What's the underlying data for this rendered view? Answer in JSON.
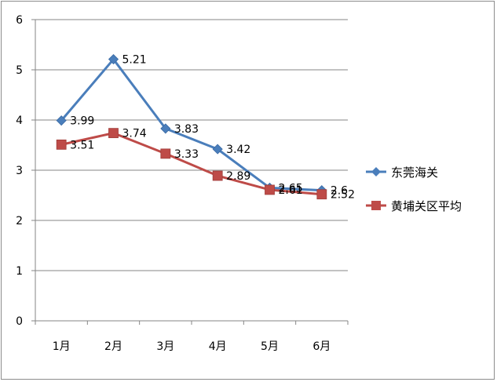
{
  "chart_data": {
    "type": "line",
    "categories": [
      "1月",
      "2月",
      "3月",
      "4月",
      "5月",
      "6月"
    ],
    "series": [
      {
        "name": "东莞海关",
        "values": [
          3.99,
          5.21,
          3.83,
          3.42,
          2.65,
          2.6
        ],
        "labels": [
          "3.99",
          "5.21",
          "3.83",
          "3.42",
          "2.65",
          "2.6"
        ],
        "color": "#4a7ebb",
        "marker": "diamond"
      },
      {
        "name": "黄埔关区平均",
        "values": [
          3.51,
          3.74,
          3.33,
          2.89,
          2.61,
          2.52
        ],
        "labels": [
          "3.51",
          "3.74",
          "3.33",
          "2.89",
          "2.61",
          "2.52"
        ],
        "color": "#be4b48",
        "marker": "square"
      }
    ],
    "ylim": [
      0,
      6
    ],
    "yticks": [
      "0",
      "1",
      "2",
      "3",
      "4",
      "5",
      "6"
    ],
    "grid": true,
    "legend": "right"
  }
}
